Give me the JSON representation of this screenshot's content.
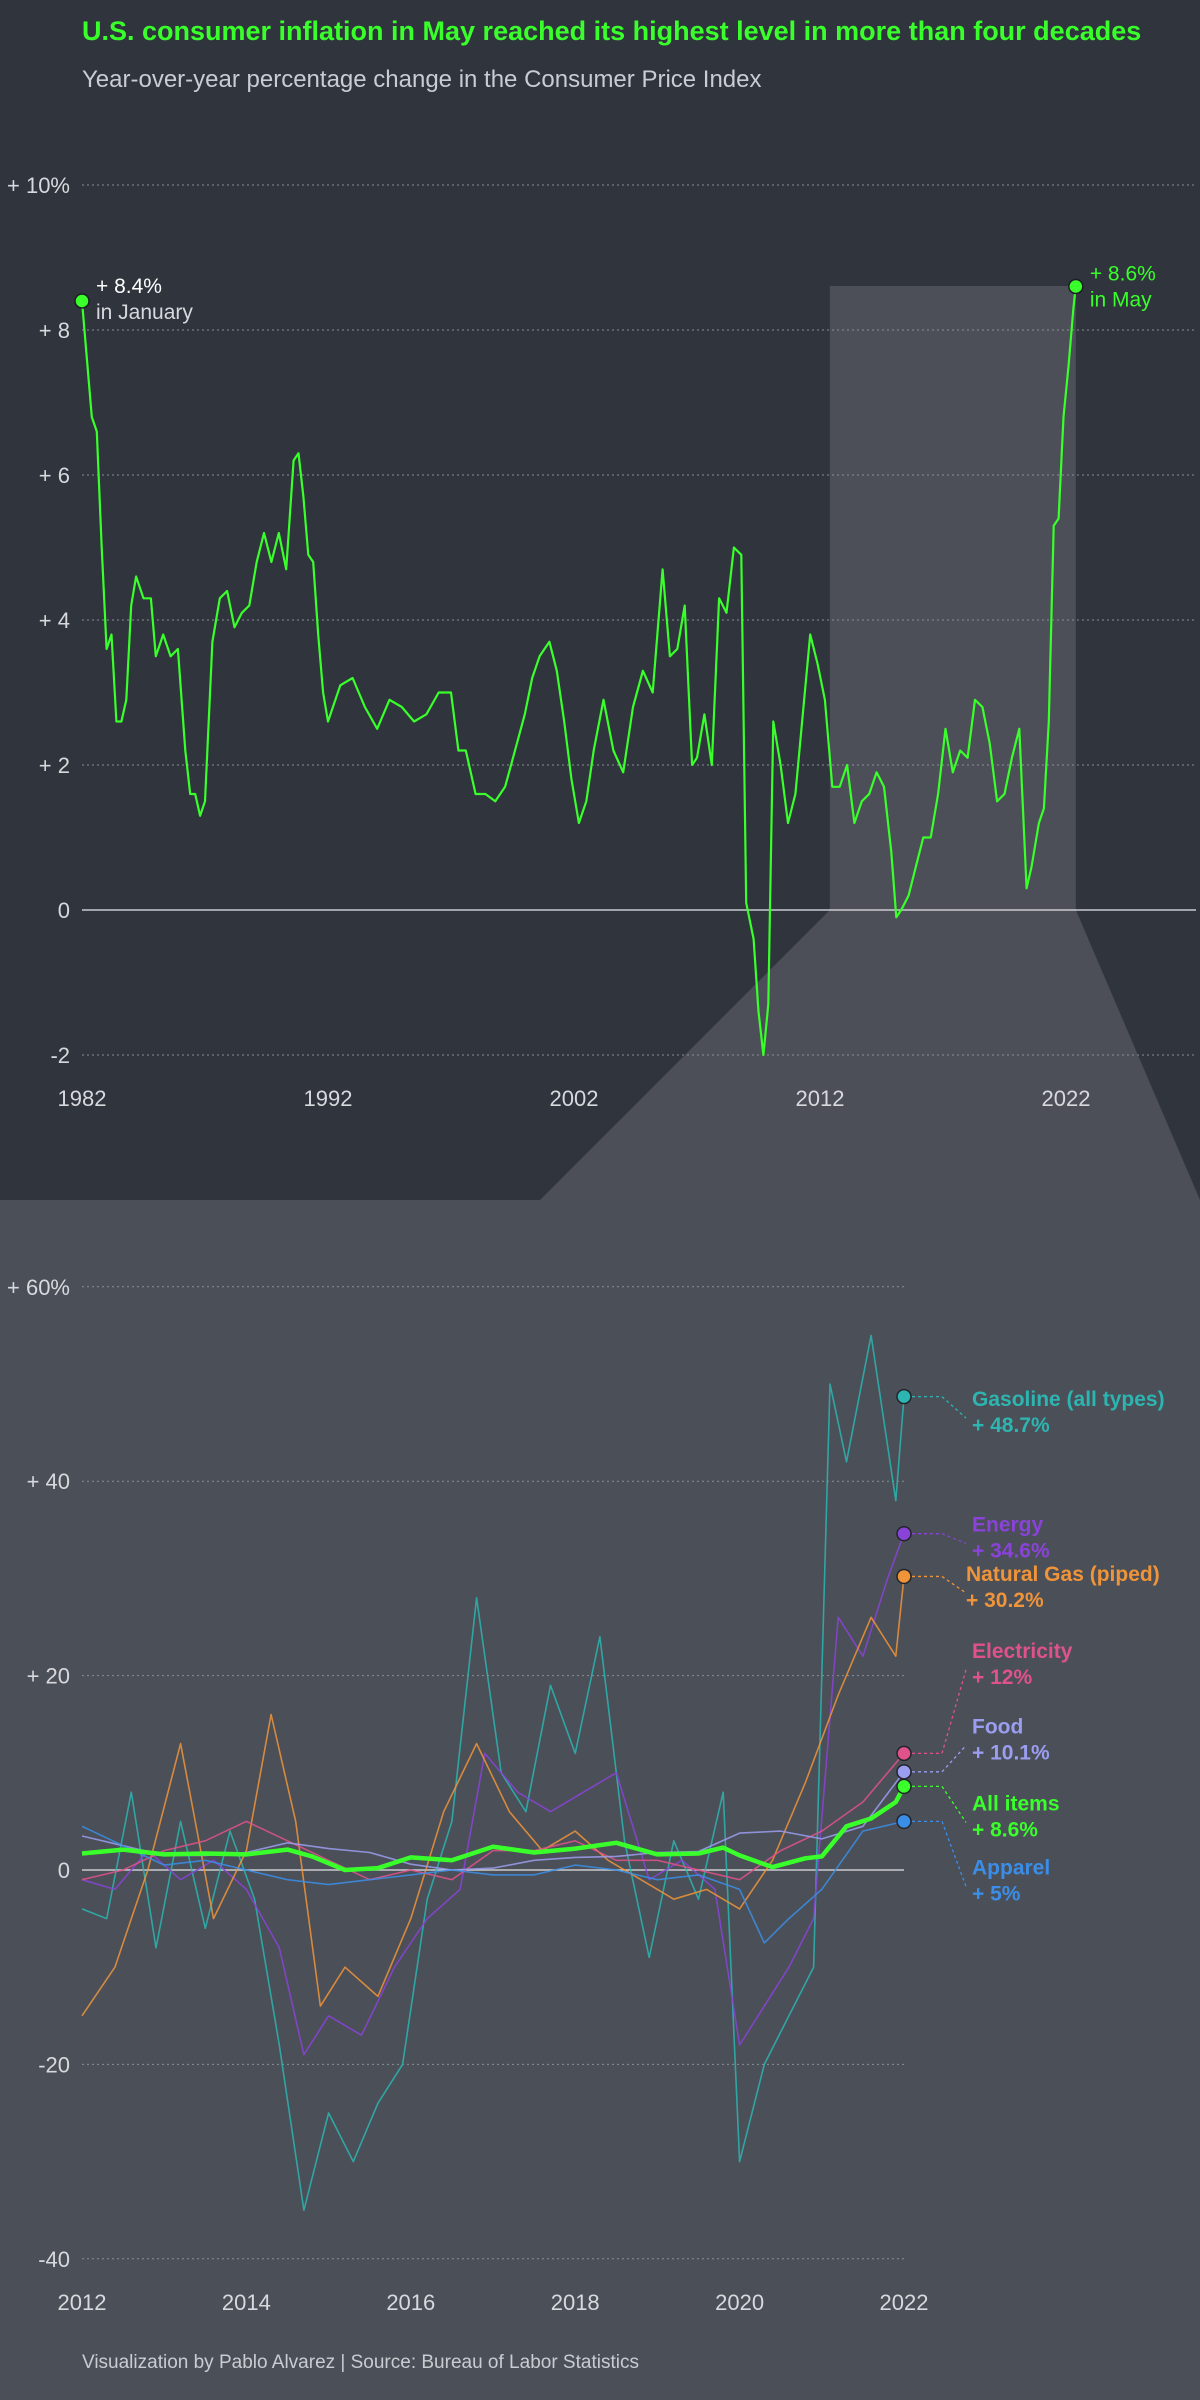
{
  "header": {
    "title": "U.S. consumer inflation in May reached its highest level in more than four decades",
    "subtitle": "Year-over-year percentage change in the Consumer Price Index"
  },
  "footer": {
    "credit": "Visualization by Pablo Alvarez | Source: Bureau of Labor Statistics"
  },
  "colors": {
    "all_items": "#39ff2a",
    "gasoline": "#2cb5b1",
    "energy": "#8a43d8",
    "natural_gas": "#f0943a",
    "electricity": "#e0528a",
    "food": "#9b9ef0",
    "apparel": "#3b8ee8",
    "highlight": "#4c4f57"
  },
  "chart_data": [
    {
      "type": "line",
      "title": "",
      "xlim": [
        1982,
        2028
      ],
      "ylim": [
        -2,
        10
      ],
      "grid": true,
      "highlight_range": [
        2012.4,
        2022.4
      ],
      "x_ticks": [
        {
          "value": 1982,
          "label": "1982"
        },
        {
          "value": 1992,
          "label": "1992"
        },
        {
          "value": 2002,
          "label": "2002"
        },
        {
          "value": 2012,
          "label": "2012"
        },
        {
          "value": 2022,
          "label": "2022"
        }
      ],
      "y_ticks": [
        {
          "value": 10,
          "label": "+ 10%"
        },
        {
          "value": 8,
          "label": "+ 8"
        },
        {
          "value": 6,
          "label": "+ 6"
        },
        {
          "value": 4,
          "label": "+ 4"
        },
        {
          "value": 2,
          "label": "+ 2"
        },
        {
          "value": 0,
          "label": "0"
        },
        {
          "value": -2,
          "label": "-2"
        }
      ],
      "series": [
        {
          "key": "all_items",
          "x": [
            1982.0,
            1982.2,
            1982.4,
            1982.6,
            1982.8,
            1983.0,
            1983.2,
            1983.4,
            1983.6,
            1983.8,
            1984.0,
            1984.2,
            1984.5,
            1984.8,
            1985.0,
            1985.3,
            1985.6,
            1985.9,
            1986.2,
            1986.4,
            1986.6,
            1986.8,
            1987.0,
            1987.3,
            1987.6,
            1987.9,
            1988.2,
            1988.5,
            1988.8,
            1989.1,
            1989.4,
            1989.7,
            1990.0,
            1990.3,
            1990.6,
            1990.8,
            1991.0,
            1991.2,
            1991.4,
            1991.6,
            1991.8,
            1992.0,
            1992.5,
            1993.0,
            1993.5,
            1994.0,
            1994.5,
            1995.0,
            1995.5,
            1996.0,
            1996.5,
            1997.0,
            1997.3,
            1997.6,
            1998.0,
            1998.4,
            1998.8,
            1999.2,
            1999.6,
            2000.0,
            2000.3,
            2000.6,
            2001.0,
            2001.3,
            2001.6,
            2001.9,
            2002.2,
            2002.5,
            2002.8,
            2003.2,
            2003.6,
            2004.0,
            2004.4,
            2004.8,
            2005.2,
            2005.6,
            2005.9,
            2006.2,
            2006.5,
            2006.8,
            2007.0,
            2007.3,
            2007.6,
            2007.9,
            2008.2,
            2008.5,
            2008.8,
            2009.0,
            2009.3,
            2009.5,
            2009.7,
            2009.9,
            2010.1,
            2010.4,
            2010.7,
            2011.0,
            2011.3,
            2011.6,
            2011.9,
            2012.2,
            2012.5,
            2012.8,
            2013.1,
            2013.4,
            2013.7,
            2014.0,
            2014.3,
            2014.6,
            2014.9,
            2015.1,
            2015.3,
            2015.6,
            2015.9,
            2016.2,
            2016.5,
            2016.8,
            2017.1,
            2017.4,
            2017.7,
            2018.0,
            2018.3,
            2018.6,
            2018.9,
            2019.2,
            2019.5,
            2019.8,
            2020.1,
            2020.4,
            2020.6,
            2020.9,
            2021.1,
            2021.3,
            2021.5,
            2021.7,
            2021.9,
            2022.1,
            2022.3,
            2022.4
          ],
          "y": [
            8.4,
            7.6,
            6.8,
            6.6,
            5.0,
            3.6,
            3.8,
            2.6,
            2.6,
            2.9,
            4.2,
            4.6,
            4.3,
            4.3,
            3.5,
            3.8,
            3.5,
            3.6,
            2.2,
            1.6,
            1.6,
            1.3,
            1.5,
            3.7,
            4.3,
            4.4,
            3.9,
            4.1,
            4.2,
            4.8,
            5.2,
            4.8,
            5.2,
            4.7,
            6.2,
            6.3,
            5.7,
            4.9,
            4.8,
            3.8,
            3.0,
            2.6,
            3.1,
            3.2,
            2.8,
            2.5,
            2.9,
            2.8,
            2.6,
            2.7,
            3.0,
            3.0,
            2.2,
            2.2,
            1.6,
            1.6,
            1.5,
            1.7,
            2.2,
            2.7,
            3.2,
            3.5,
            3.7,
            3.3,
            2.6,
            1.8,
            1.2,
            1.5,
            2.2,
            2.9,
            2.2,
            1.9,
            2.8,
            3.3,
            3.0,
            4.7,
            3.5,
            3.6,
            4.2,
            2.0,
            2.1,
            2.7,
            2.0,
            4.3,
            4.1,
            5.0,
            4.9,
            0.1,
            -0.4,
            -1.4,
            -2.0,
            -1.3,
            2.6,
            2.0,
            1.2,
            1.6,
            2.7,
            3.8,
            3.4,
            2.9,
            1.7,
            1.7,
            2.0,
            1.2,
            1.5,
            1.6,
            1.9,
            1.7,
            0.8,
            -0.1,
            0.0,
            0.2,
            0.6,
            1.0,
            1.0,
            1.6,
            2.5,
            1.9,
            2.2,
            2.1,
            2.9,
            2.8,
            2.3,
            1.5,
            1.6,
            2.1,
            2.5,
            0.3,
            0.6,
            1.2,
            1.4,
            2.6,
            5.3,
            5.4,
            6.8,
            7.5,
            8.3,
            8.6
          ]
        }
      ],
      "annotations": [
        {
          "key": "start",
          "x": 1982.0,
          "y": 8.4,
          "line1": "+ 8.4%",
          "line2": "in January"
        },
        {
          "key": "end",
          "x": 2022.4,
          "y": 8.6,
          "line1": "+ 8.6%",
          "line2": "in May"
        }
      ]
    },
    {
      "type": "line",
      "title": "",
      "xlim": [
        2012,
        2022.4
      ],
      "ylim": [
        -40,
        60
      ],
      "grid": true,
      "x_ticks": [
        {
          "value": 2012,
          "label": "2012"
        },
        {
          "value": 2014,
          "label": "2014"
        },
        {
          "value": 2016,
          "label": "2016"
        },
        {
          "value": 2018,
          "label": "2018"
        },
        {
          "value": 2020,
          "label": "2020"
        },
        {
          "value": 2022,
          "label": "2022"
        }
      ],
      "y_ticks": [
        {
          "value": 60,
          "label": "+ 60%"
        },
        {
          "value": 40,
          "label": "+ 40"
        },
        {
          "value": 20,
          "label": "+ 20"
        },
        {
          "value": 0,
          "label": "0"
        },
        {
          "value": -20,
          "label": "-20"
        },
        {
          "value": -40,
          "label": "-40"
        }
      ],
      "series": [
        {
          "key": "gasoline",
          "name": "Gasoline (all types)",
          "value_label": "+ 48.7%",
          "end": 48.7,
          "label_y": 46.5,
          "x": [
            2012.0,
            2012.3,
            2012.6,
            2012.9,
            2013.2,
            2013.5,
            2013.8,
            2014.1,
            2014.4,
            2014.7,
            2015.0,
            2015.3,
            2015.6,
            2015.9,
            2016.2,
            2016.5,
            2016.8,
            2017.1,
            2017.4,
            2017.7,
            2018.0,
            2018.3,
            2018.6,
            2018.9,
            2019.2,
            2019.5,
            2019.8,
            2020.0,
            2020.3,
            2020.6,
            2020.9,
            2021.1,
            2021.3,
            2021.6,
            2021.9,
            2022.0
          ],
          "y": [
            -4,
            -5,
            8,
            -8,
            5,
            -6,
            4,
            -3,
            -18,
            -35,
            -25,
            -30,
            -24,
            -20,
            -3,
            5,
            28,
            10,
            6,
            19,
            12,
            24,
            3,
            -9,
            3,
            -3,
            8,
            -30,
            -20,
            -15,
            -10,
            50,
            42,
            55,
            38,
            48.7
          ]
        },
        {
          "key": "energy",
          "name": "Energy",
          "value_label": "+ 34.6%",
          "end": 34.6,
          "label_y": 33.6,
          "x": [
            2012.0,
            2012.4,
            2012.8,
            2013.2,
            2013.6,
            2014.0,
            2014.4,
            2014.7,
            2015.0,
            2015.4,
            2015.8,
            2016.2,
            2016.6,
            2016.9,
            2017.3,
            2017.7,
            2018.1,
            2018.5,
            2018.9,
            2019.3,
            2019.7,
            2020.0,
            2020.3,
            2020.6,
            2020.9,
            2021.2,
            2021.5,
            2021.8,
            2022.0
          ],
          "y": [
            -1,
            -2,
            2,
            -1,
            1,
            -2,
            -8,
            -19,
            -15,
            -17,
            -10,
            -5,
            -2,
            12,
            8,
            6,
            8,
            10,
            -1,
            1,
            -2,
            -18,
            -14,
            -10,
            -5,
            26,
            22,
            30,
            34.6
          ]
        },
        {
          "key": "natural_gas",
          "name": "Natural Gas (piped)",
          "value_label": "+ 30.2%",
          "end": 30.2,
          "label_y": 28.5,
          "x": [
            2012.0,
            2012.4,
            2012.8,
            2013.2,
            2013.6,
            2014.0,
            2014.3,
            2014.6,
            2014.9,
            2015.2,
            2015.6,
            2016.0,
            2016.4,
            2016.8,
            2017.2,
            2017.6,
            2018.0,
            2018.4,
            2018.8,
            2019.2,
            2019.6,
            2020.0,
            2020.4,
            2020.8,
            2021.2,
            2021.6,
            2021.9,
            2022.0
          ],
          "y": [
            -15,
            -10,
            0,
            13,
            -5,
            2,
            16,
            5,
            -14,
            -10,
            -13,
            -5,
            6,
            13,
            6,
            2,
            4,
            1,
            -1,
            -3,
            -2,
            -4,
            1,
            9,
            18,
            26,
            22,
            30.2
          ]
        },
        {
          "key": "electricity",
          "name": "Electricity",
          "value_label": "+ 12%",
          "end": 12.0,
          "label_y": 20.6,
          "x": [
            2012.0,
            2012.5,
            2013.0,
            2013.5,
            2014.0,
            2014.5,
            2015.0,
            2015.5,
            2016.0,
            2016.5,
            2017.0,
            2017.5,
            2018.0,
            2018.5,
            2019.0,
            2019.5,
            2020.0,
            2020.5,
            2021.0,
            2021.5,
            2022.0
          ],
          "y": [
            -1,
            0,
            2,
            3,
            5,
            3,
            1,
            -1,
            0,
            -1,
            2,
            2,
            3,
            1,
            1,
            0,
            -1,
            2,
            4,
            7,
            12
          ]
        },
        {
          "key": "food",
          "name": "Food",
          "value_label": "+ 10.1%",
          "end": 10.1,
          "label_y": 12.8,
          "x": [
            2012.0,
            2012.5,
            2013.0,
            2013.5,
            2014.0,
            2014.5,
            2015.0,
            2015.5,
            2016.0,
            2016.5,
            2017.0,
            2017.5,
            2018.0,
            2018.5,
            2019.0,
            2019.5,
            2020.0,
            2020.5,
            2021.0,
            2021.5,
            2022.0
          ],
          "y": [
            3.5,
            2.5,
            1.5,
            1.5,
            1.8,
            2.8,
            2.2,
            1.8,
            0.6,
            0.0,
            0.2,
            1.0,
            1.3,
            1.4,
            1.8,
            1.9,
            3.8,
            4.0,
            3.2,
            4.5,
            10.1
          ]
        },
        {
          "key": "apparel",
          "name": "Apparel",
          "value_label": "+ 5%",
          "end": 5.0,
          "label_y": -1.7,
          "x": [
            2012.0,
            2012.5,
            2013.0,
            2013.5,
            2014.0,
            2014.5,
            2015.0,
            2015.5,
            2016.0,
            2016.5,
            2017.0,
            2017.5,
            2018.0,
            2018.5,
            2019.0,
            2019.5,
            2020.0,
            2020.3,
            2020.6,
            2021.0,
            2021.5,
            2022.0
          ],
          "y": [
            4.5,
            2.5,
            0.5,
            1.0,
            0.0,
            -1.0,
            -1.5,
            -1.0,
            -0.5,
            0.0,
            -0.5,
            -0.5,
            0.5,
            0.0,
            -1.0,
            -0.5,
            -2.0,
            -7.5,
            -5.0,
            -2.0,
            4.0,
            5.0
          ]
        },
        {
          "key": "all_items",
          "name": "All items",
          "value_label": "+ 8.6%",
          "end": 8.6,
          "label_y": 4.9,
          "bold": true,
          "x": [
            2012.0,
            2012.5,
            2013.0,
            2013.5,
            2014.0,
            2014.5,
            2014.8,
            2015.2,
            2015.6,
            2016.0,
            2016.5,
            2017.0,
            2017.5,
            2018.0,
            2018.5,
            2019.0,
            2019.5,
            2019.8,
            2020.0,
            2020.4,
            2020.8,
            2021.0,
            2021.3,
            2021.6,
            2021.9,
            2022.0
          ],
          "y": [
            1.7,
            2.1,
            1.6,
            1.7,
            1.6,
            2.1,
            1.4,
            0.0,
            0.2,
            1.3,
            1.0,
            2.4,
            1.8,
            2.2,
            2.8,
            1.6,
            1.7,
            2.3,
            1.5,
            0.3,
            1.2,
            1.4,
            4.5,
            5.3,
            7.0,
            8.6
          ]
        }
      ]
    }
  ]
}
